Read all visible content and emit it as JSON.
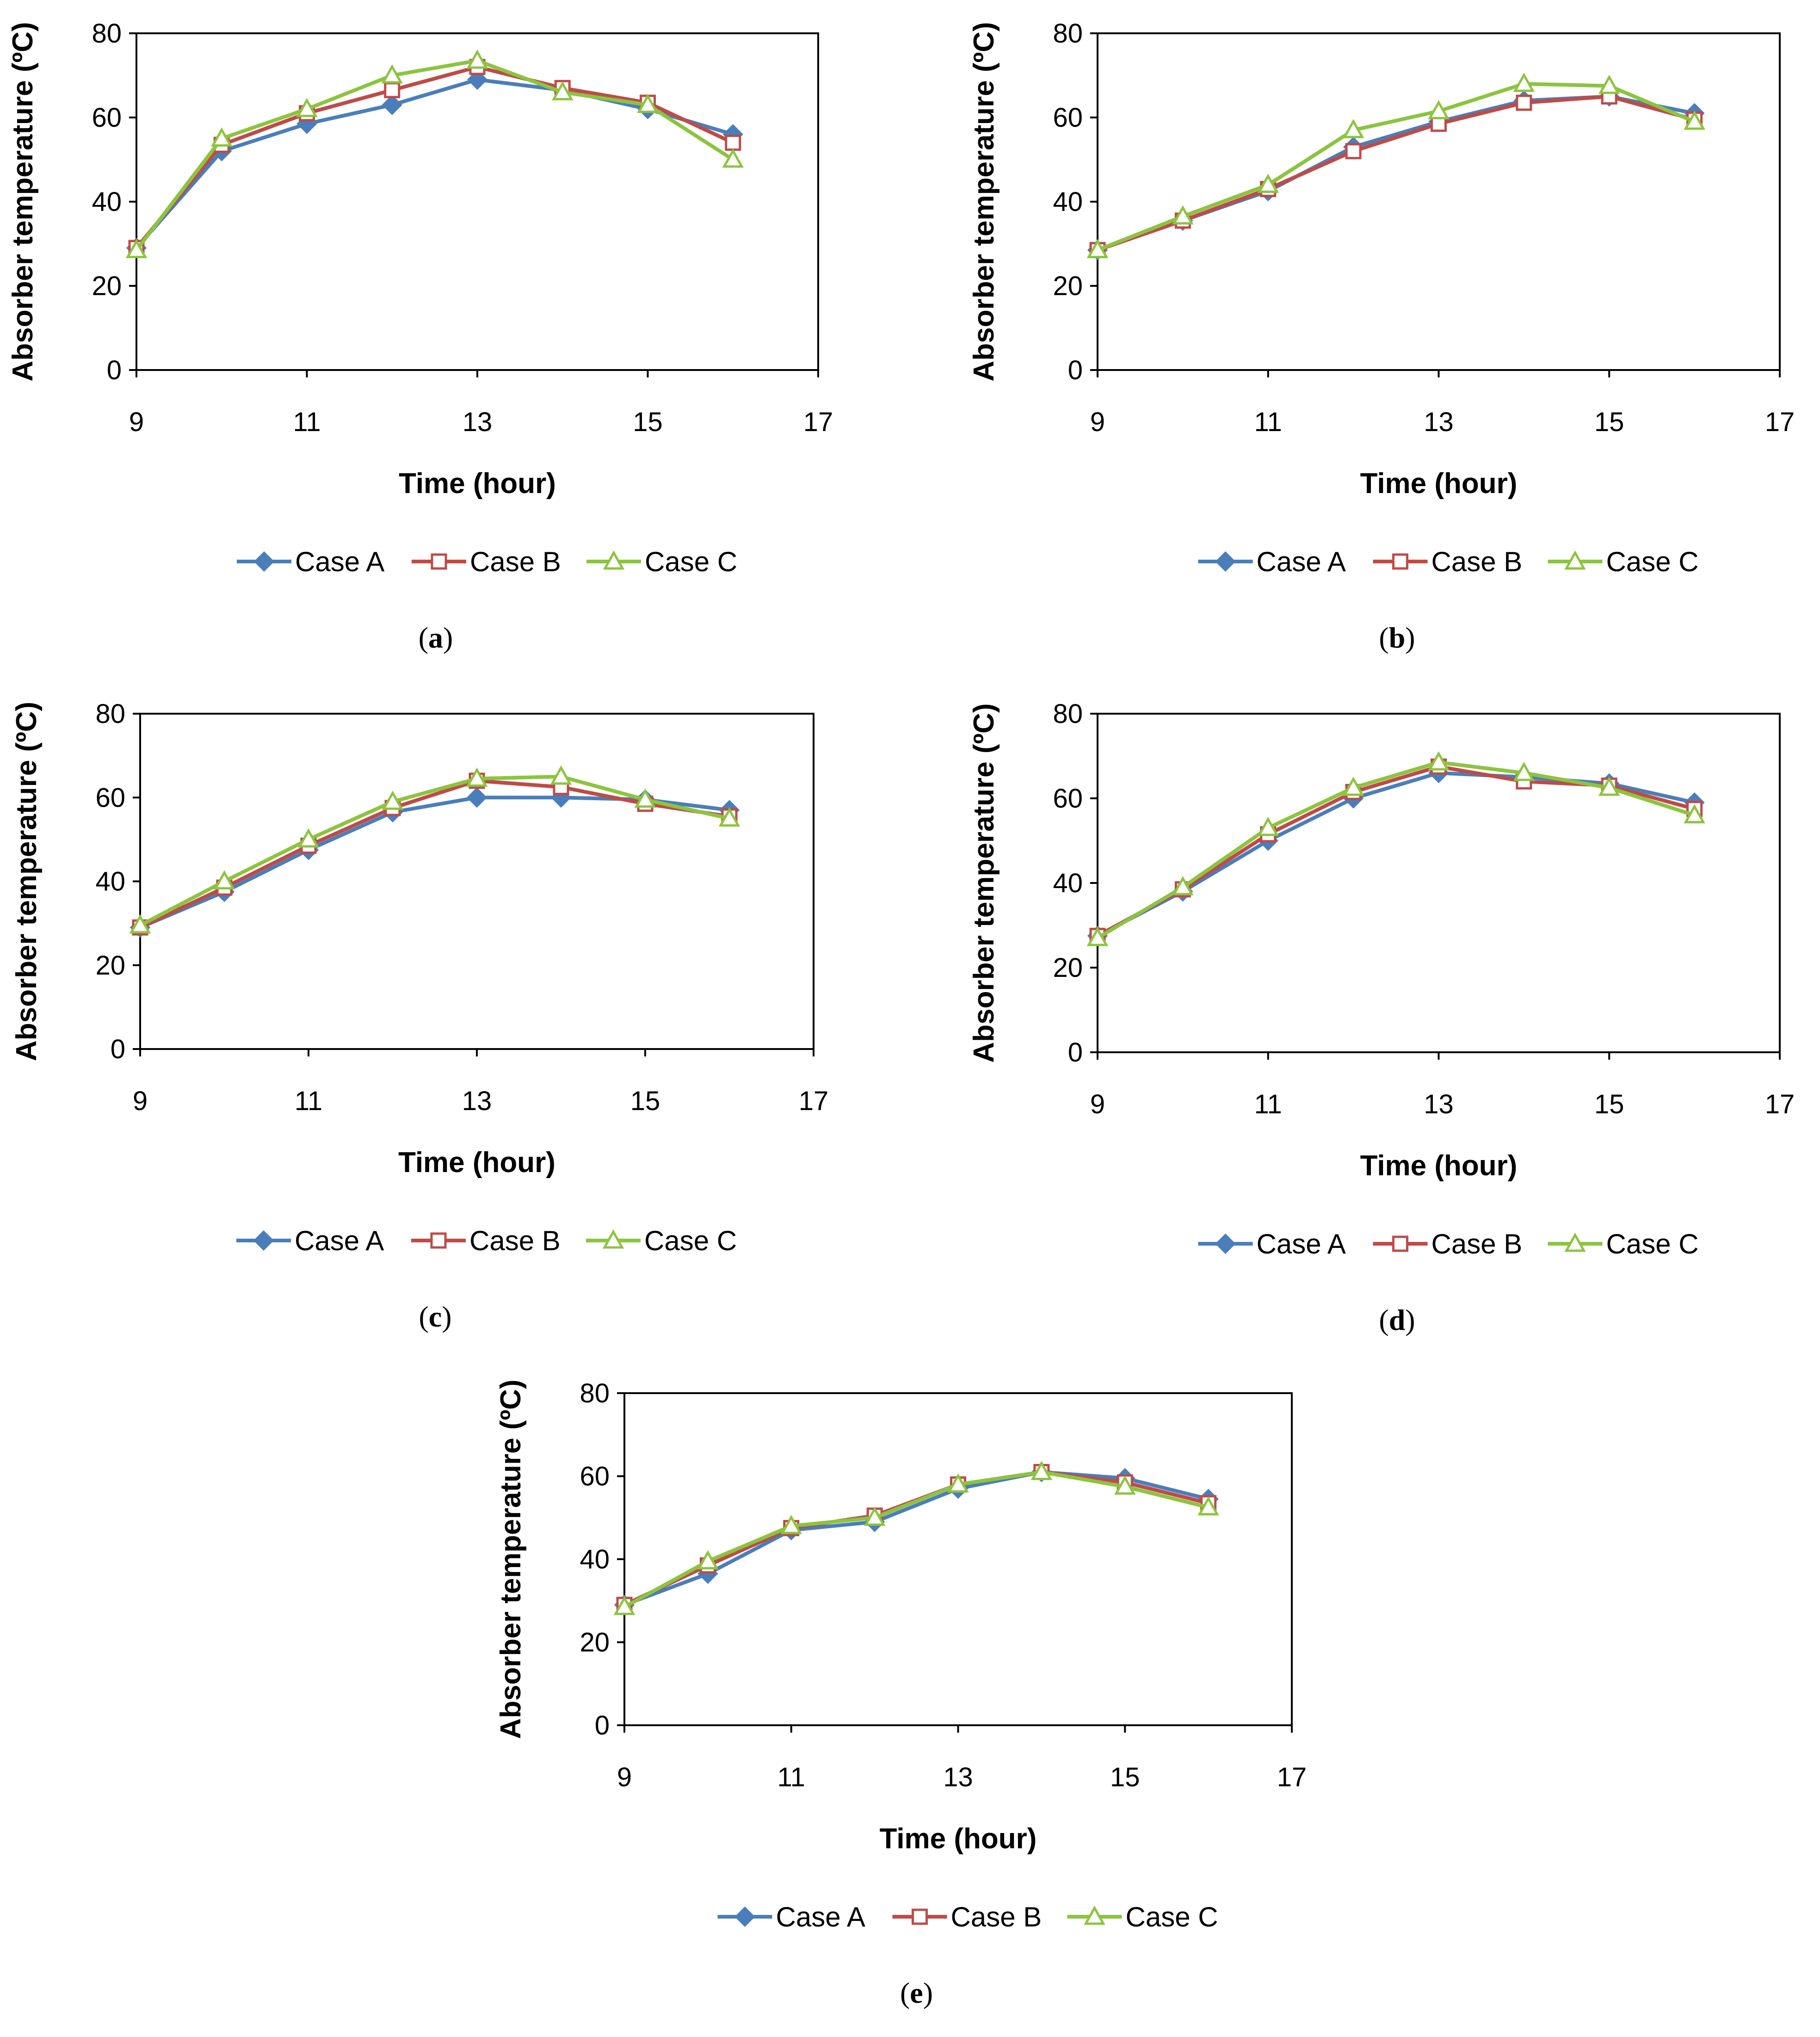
{
  "figure": {
    "panels": [
      "a",
      "b",
      "c",
      "d",
      "e"
    ]
  },
  "chart_data": [
    {
      "id": "a",
      "caption": "a",
      "type": "line",
      "xlabel": "Time (hour)",
      "ylabel": "Absorber temperature (ºC)",
      "xlim": [
        9,
        17
      ],
      "ylim": [
        0,
        80
      ],
      "xticks": [
        9,
        11,
        13,
        15,
        17
      ],
      "yticks": [
        0,
        20,
        40,
        60,
        80
      ],
      "grid": false,
      "legend": "bottom",
      "x": [
        9,
        10,
        11,
        12,
        13,
        14,
        15,
        16
      ],
      "series": [
        {
          "name": "Case A",
          "color": "#4a7ebb",
          "marker": "diamond",
          "values": [
            29,
            52,
            58.5,
            63,
            69,
            66.5,
            62,
            56
          ]
        },
        {
          "name": "Case B",
          "color": "#be4b48",
          "marker": "square",
          "values": [
            29,
            53.5,
            61,
            66.5,
            72,
            67,
            63.5,
            54
          ]
        },
        {
          "name": "Case C",
          "color": "#8cc43f",
          "marker": "triangle",
          "values": [
            28.5,
            55,
            62,
            70,
            73.5,
            66,
            63,
            50
          ]
        }
      ]
    },
    {
      "id": "b",
      "caption": "b",
      "type": "line",
      "xlabel": "Time (hour)",
      "ylabel": "Absorber temperature (ºC)",
      "xlim": [
        9,
        17
      ],
      "ylim": [
        0,
        80
      ],
      "xticks": [
        9,
        11,
        13,
        15,
        17
      ],
      "yticks": [
        0,
        20,
        40,
        60,
        80
      ],
      "grid": false,
      "legend": "bottom",
      "x": [
        9,
        10,
        11,
        12,
        13,
        14,
        15,
        16
      ],
      "series": [
        {
          "name": "Case A",
          "color": "#4a7ebb",
          "marker": "diamond",
          "values": [
            28.5,
            35.5,
            42.5,
            53,
            59,
            64,
            65,
            61
          ]
        },
        {
          "name": "Case B",
          "color": "#be4b48",
          "marker": "square",
          "values": [
            28.5,
            35.5,
            43,
            52,
            58.5,
            63.5,
            65,
            59.5
          ]
        },
        {
          "name": "Case C",
          "color": "#8cc43f",
          "marker": "triangle",
          "values": [
            28.5,
            36.5,
            44,
            57,
            61.5,
            68,
            67.5,
            59
          ]
        }
      ]
    },
    {
      "id": "c",
      "caption": "c",
      "type": "line",
      "xlabel": "Time (hour)",
      "ylabel": "Absorber temperature (ºC)",
      "xlim": [
        9,
        17
      ],
      "ylim": [
        0,
        80
      ],
      "xticks": [
        9,
        11,
        13,
        15,
        17
      ],
      "yticks": [
        0,
        20,
        40,
        60,
        80
      ],
      "grid": false,
      "legend": "bottom",
      "x": [
        9,
        10,
        11,
        12,
        13,
        14,
        15,
        16
      ],
      "series": [
        {
          "name": "Case A",
          "color": "#4a7ebb",
          "marker": "diamond",
          "values": [
            29,
            37.5,
            47.5,
            56.5,
            60,
            60,
            59.5,
            57
          ]
        },
        {
          "name": "Case B",
          "color": "#be4b48",
          "marker": "square",
          "values": [
            29,
            38.5,
            48.5,
            57.5,
            64,
            62.5,
            58.5,
            55.5
          ]
        },
        {
          "name": "Case C",
          "color": "#8cc43f",
          "marker": "triangle",
          "values": [
            29.5,
            40,
            50,
            59,
            64.5,
            65,
            59.5,
            55
          ]
        }
      ]
    },
    {
      "id": "d",
      "caption": "d",
      "type": "line",
      "xlabel": "Time (hour)",
      "ylabel": "Absorber temperature (ºC)",
      "xlim": [
        9,
        17
      ],
      "ylim": [
        0,
        80
      ],
      "xticks": [
        9,
        11,
        13,
        15,
        17
      ],
      "yticks": [
        0,
        20,
        40,
        60,
        80
      ],
      "grid": false,
      "legend": "bottom",
      "x": [
        9,
        10,
        11,
        12,
        13,
        14,
        15,
        16
      ],
      "series": [
        {
          "name": "Case A",
          "color": "#4a7ebb",
          "marker": "diamond",
          "values": [
            27.5,
            38,
            50,
            60,
            66,
            65,
            63.5,
            59
          ]
        },
        {
          "name": "Case B",
          "color": "#be4b48",
          "marker": "square",
          "values": [
            27.5,
            38.5,
            51.5,
            61.5,
            67.5,
            64,
            63,
            57.5
          ]
        },
        {
          "name": "Case C",
          "color": "#8cc43f",
          "marker": "triangle",
          "values": [
            27,
            39,
            53,
            62.5,
            68.5,
            66,
            62.5,
            56
          ]
        }
      ]
    },
    {
      "id": "e",
      "caption": "e",
      "type": "line",
      "xlabel": "Time (hour)",
      "ylabel": "Absorber temperature (ºC)",
      "xlim": [
        9,
        17
      ],
      "ylim": [
        0,
        80
      ],
      "xticks": [
        9,
        11,
        13,
        15,
        17
      ],
      "yticks": [
        0,
        20,
        40,
        60,
        80
      ],
      "grid": false,
      "legend": "bottom",
      "x": [
        9,
        10,
        11,
        12,
        13,
        14,
        15,
        16
      ],
      "series": [
        {
          "name": "Case A",
          "color": "#4a7ebb",
          "marker": "diamond",
          "values": [
            29,
            36.5,
            47,
            49,
            57,
            61,
            59.5,
            54.5
          ]
        },
        {
          "name": "Case B",
          "color": "#be4b48",
          "marker": "square",
          "values": [
            29,
            38.5,
            47.5,
            50.5,
            58,
            61,
            58.5,
            53.5
          ]
        },
        {
          "name": "Case C",
          "color": "#8cc43f",
          "marker": "triangle",
          "values": [
            28.5,
            39.5,
            48,
            50,
            58,
            61,
            57.5,
            52.5
          ]
        }
      ]
    }
  ]
}
